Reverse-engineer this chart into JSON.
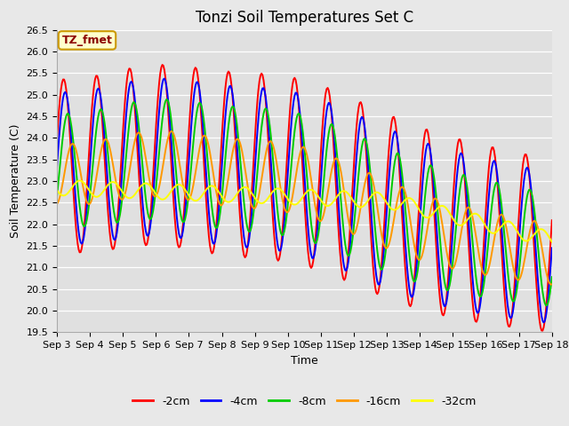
{
  "title": "Tonzi Soil Temperatures Set C",
  "xlabel": "Time",
  "ylabel": "Soil Temperature (C)",
  "ylim": [
    19.5,
    26.5
  ],
  "legend_label": "TZ_fmet",
  "series_labels": [
    "-2cm",
    "-4cm",
    "-8cm",
    "-16cm",
    "-32cm"
  ],
  "series_colors": [
    "#ff0000",
    "#0000ff",
    "#00cc00",
    "#ff9900",
    "#ffff00"
  ],
  "x_tick_labels": [
    "Sep 3",
    "Sep 4",
    "Sep 5",
    "Sep 6",
    "Sep 7",
    "Sep 8",
    "Sep 9",
    "Sep 10",
    "Sep 11",
    "Sep 12",
    "Sep 13",
    "Sep 14",
    "Sep 15",
    "Sep 16",
    "Sep 17",
    "Sep 18"
  ],
  "fig_bg_color": "#e8e8e8",
  "plot_bg_color": "#e0e0e0",
  "title_fontsize": 12,
  "axis_fontsize": 9,
  "tick_fontsize": 8,
  "legend_fontsize": 9,
  "line_width": 1.4,
  "n_points": 480
}
